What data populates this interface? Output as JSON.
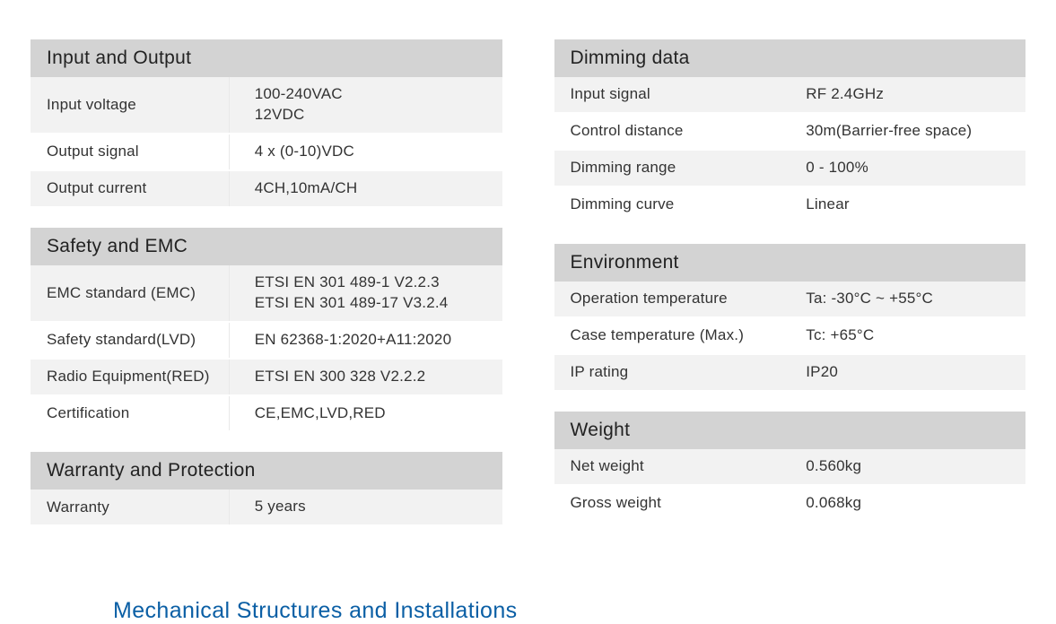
{
  "left": {
    "sections": [
      {
        "title": "Input and Output",
        "rows": [
          {
            "label": "Input voltage",
            "value": "100-240VAC\n12VDC",
            "alt": true
          },
          {
            "label": "Output signal",
            "value": "4 x (0-10)VDC",
            "alt": false
          },
          {
            "label": "Output current",
            "value": "4CH,10mA/CH",
            "alt": true
          }
        ]
      },
      {
        "title": "Safety and EMC",
        "rows": [
          {
            "label": "EMC standard (EMC)",
            "value": "ETSI EN 301 489-1 V2.2.3\nETSI EN 301 489-17 V3.2.4",
            "alt": true
          },
          {
            "label": "Safety standard(LVD)",
            "value": "EN 62368-1:2020+A11:2020",
            "alt": false
          },
          {
            "label": "Radio Equipment(RED)",
            "value": "ETSI EN 300 328 V2.2.2",
            "alt": true
          },
          {
            "label": "Certification",
            "value": "CE,EMC,LVD,RED",
            "alt": false
          }
        ]
      },
      {
        "title": "Warranty and Protection",
        "rows": [
          {
            "label": "Warranty",
            "value": "5 years",
            "alt": true
          }
        ]
      }
    ]
  },
  "right": {
    "sections": [
      {
        "title": "Dimming data",
        "rows": [
          {
            "label": "Input signal",
            "value": "RF 2.4GHz",
            "alt": true
          },
          {
            "label": "Control distance",
            "value": "30m(Barrier-free space)",
            "alt": false
          },
          {
            "label": "Dimming range",
            "value": "0 - 100%",
            "alt": true
          },
          {
            "label": "Dimming curve",
            "value": "Linear",
            "alt": false
          }
        ]
      },
      {
        "title": "Environment",
        "rows": [
          {
            "label": "Operation temperature",
            "value": "Ta: -30°C ~ +55°C",
            "alt": true
          },
          {
            "label": "Case temperature (Max.)",
            "value": "Tc: +65°C",
            "alt": false
          },
          {
            "label": "IP rating",
            "value": "IP20",
            "alt": true
          }
        ]
      },
      {
        "title": "Weight",
        "rows": [
          {
            "label": "Net weight",
            "value": "0.560kg",
            "alt": true
          },
          {
            "label": "Gross weight",
            "value": "0.068kg",
            "alt": false
          }
        ]
      }
    ]
  },
  "footer_title": "Mechanical Structures and Installations"
}
